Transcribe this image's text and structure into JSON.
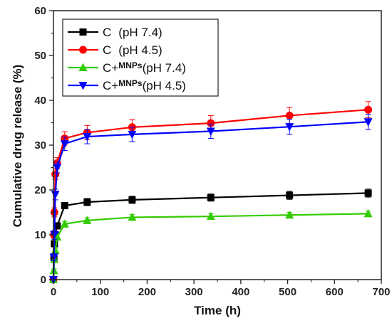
{
  "chart_data": {
    "type": "line",
    "xlabel": "Time (h)",
    "ylabel": "Cumulative drug release (%)",
    "xlim": [
      0,
      700
    ],
    "ylim": [
      0,
      60
    ],
    "xticks": [
      "0",
      "100",
      "200",
      "300",
      "400",
      "500",
      "600",
      "700"
    ],
    "yticks": [
      "0",
      "10",
      "20",
      "30",
      "40",
      "50",
      "60"
    ],
    "grid": false,
    "legend_position": "top-left",
    "series": [
      {
        "name_parts": [
          "C",
          "",
          "(pH 7.4)"
        ],
        "color": "#000000",
        "marker": "square",
        "x": [
          0,
          1,
          2,
          4,
          8,
          24,
          72,
          168,
          336,
          504,
          672
        ],
        "y": [
          0,
          5,
          8,
          10,
          12,
          16.5,
          17.3,
          17.8,
          18.3,
          18.8,
          19.3
        ],
        "err": [
          0,
          0.5,
          0.5,
          0.6,
          0.7,
          0.7,
          0.8,
          0.8,
          0.8,
          0.9,
          0.9
        ]
      },
      {
        "name_parts": [
          "C",
          "",
          "(pH 4.5)"
        ],
        "color": "#ff0000",
        "marker": "circle",
        "x": [
          0,
          1,
          2,
          4,
          8,
          24,
          72,
          168,
          336,
          504,
          672
        ],
        "y": [
          0,
          10,
          15,
          23.5,
          26,
          31.5,
          32.8,
          34,
          34.9,
          36.6,
          37.9
        ],
        "err": [
          0,
          0.8,
          1,
          1.2,
          1.2,
          1.5,
          1.6,
          1.7,
          1.7,
          1.8,
          1.8
        ]
      },
      {
        "name_parts": [
          "C+",
          "MNPs",
          "(pH 7.4)"
        ],
        "color": "#33cc00",
        "marker": "triangle-up",
        "x": [
          0,
          1,
          2,
          4,
          8,
          24,
          72,
          168,
          336,
          504,
          672
        ],
        "y": [
          0,
          2,
          4.5,
          6.5,
          9.5,
          12.4,
          13.2,
          13.9,
          14.1,
          14.4,
          14.7
        ],
        "err": [
          0,
          0.4,
          0.4,
          0.5,
          0.6,
          0.6,
          0.6,
          0.6,
          0.6,
          0.6,
          0.6
        ]
      },
      {
        "name_parts": [
          "C+",
          "MNPs",
          "(pH 4.5)"
        ],
        "color": "#0000ff",
        "marker": "triangle-down",
        "x": [
          0,
          1,
          2,
          4,
          8,
          24,
          72,
          168,
          336,
          504,
          672
        ],
        "y": [
          0,
          5,
          10,
          19,
          25,
          30.3,
          31.9,
          32.4,
          33.1,
          34.1,
          35.2
        ],
        "err": [
          0,
          0.8,
          1,
          1.2,
          1.2,
          1.5,
          1.6,
          1.6,
          1.6,
          1.7,
          1.7
        ]
      }
    ]
  }
}
